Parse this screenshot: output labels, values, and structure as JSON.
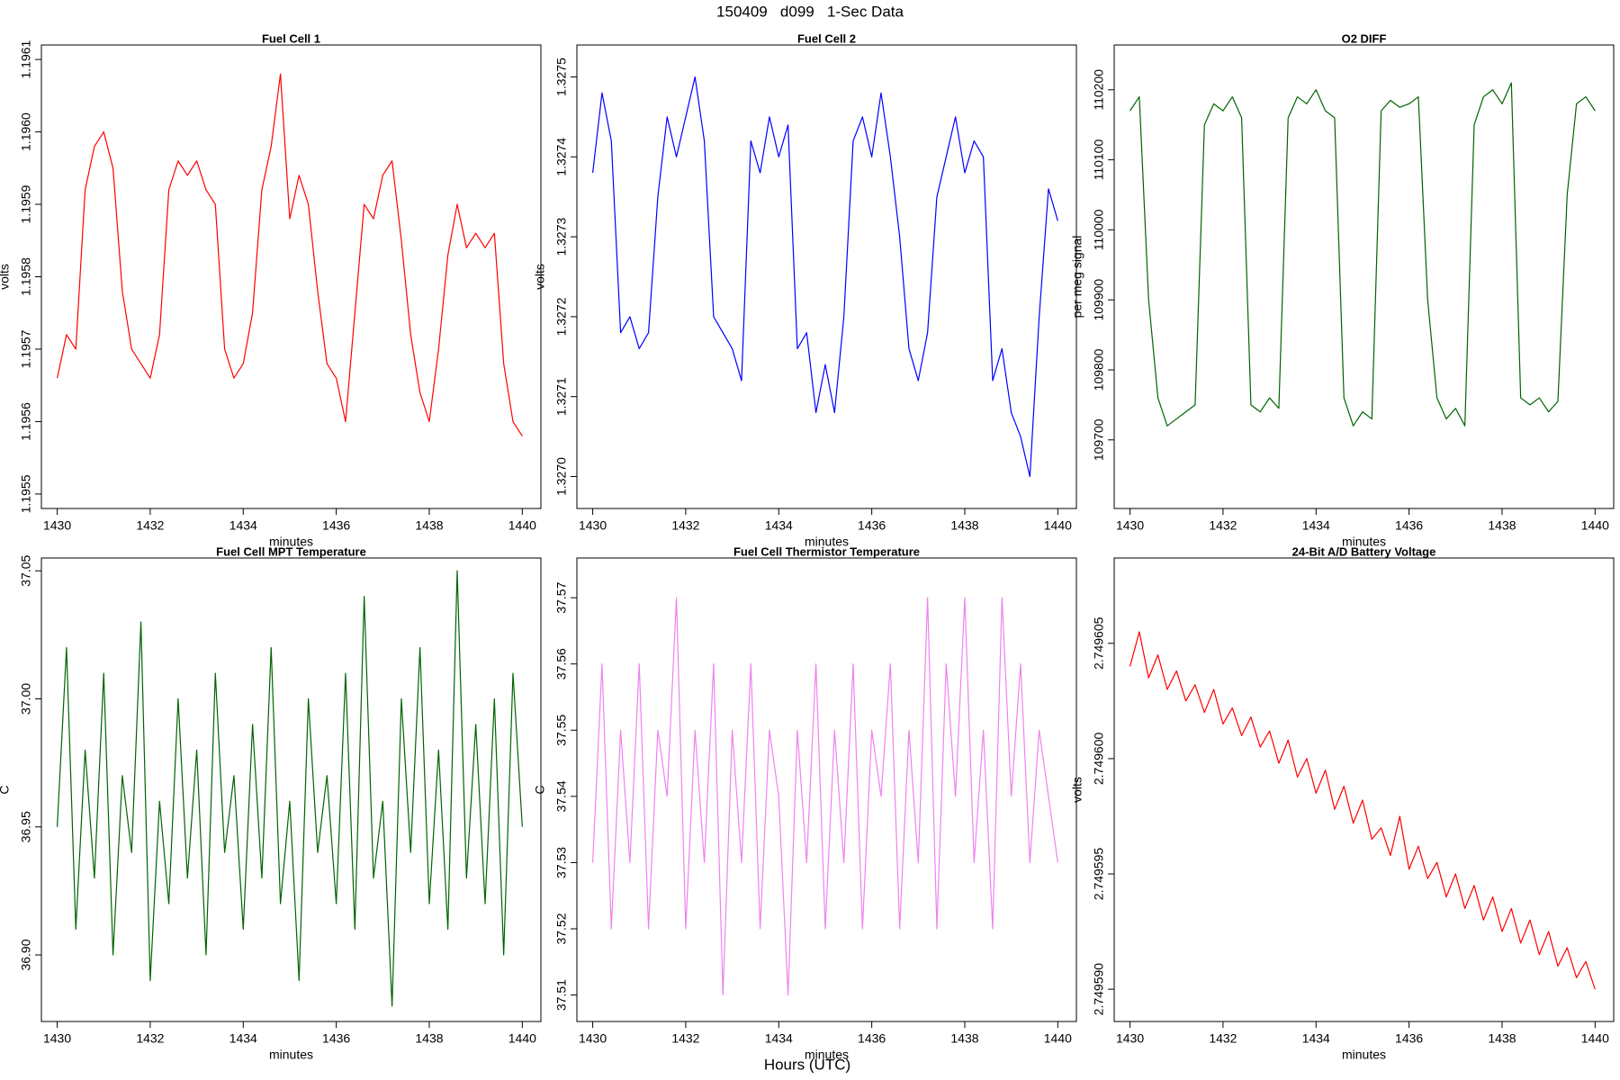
{
  "title": "150409   d099   1-Sec Data",
  "xlabel": "Hours (UTC)",
  "chart_data": [
    {
      "type": "line",
      "title": "Fuel Cell 1",
      "xlabel": "minutes",
      "ylabel": "volts",
      "color": "#ff0000",
      "xlim": [
        1429.66,
        1440.4
      ],
      "xticks": [
        1430,
        1432,
        1434,
        1436,
        1438,
        1440
      ],
      "ylim": [
        1.19548,
        1.19612
      ],
      "yticks": [
        1.1955,
        1.1956,
        1.1957,
        1.1958,
        1.1959,
        {
          "value": 1.196,
          "label": "1.1960"
        },
        1.1961
      ],
      "x": [
        1430,
        1430.2,
        1430.4,
        1430.6,
        1430.8,
        1431,
        1431.2,
        1431.4,
        1431.6,
        1431.8,
        1432,
        1432.2,
        1432.4,
        1432.6,
        1432.8,
        1433,
        1433.2,
        1433.4,
        1433.6,
        1433.8,
        1434,
        1434.2,
        1434.4,
        1434.6,
        1434.8,
        1435,
        1435.2,
        1435.4,
        1435.6,
        1435.8,
        1436,
        1436.2,
        1436.4,
        1436.6,
        1436.8,
        1437,
        1437.2,
        1437.4,
        1437.6,
        1437.8,
        1438,
        1438.2,
        1438.4,
        1438.6,
        1438.8,
        1439,
        1439.2,
        1439.4,
        1439.6,
        1439.8,
        1440
      ],
      "values": [
        1.19566,
        1.19572,
        1.1957,
        1.19592,
        1.19598,
        1.196,
        1.19595,
        1.19578,
        1.1957,
        1.19568,
        1.19566,
        1.19572,
        1.19592,
        1.19596,
        1.19594,
        1.19596,
        1.19592,
        1.1959,
        1.1957,
        1.19566,
        1.19568,
        1.19575,
        1.19592,
        1.19598,
        1.19608,
        1.19588,
        1.19594,
        1.1959,
        1.19578,
        1.19568,
        1.19566,
        1.1956,
        1.19575,
        1.1959,
        1.19588,
        1.19594,
        1.19596,
        1.19585,
        1.19572,
        1.19564,
        1.1956,
        1.1957,
        1.19583,
        1.1959,
        1.19584,
        1.19586,
        1.19584,
        1.19586,
        1.19568,
        1.1956,
        1.19558
      ]
    },
    {
      "type": "line",
      "title": "Fuel Cell 2",
      "xlabel": "minutes",
      "ylabel": "volts",
      "color": "#0000ff",
      "xlim": [
        1429.66,
        1440.4
      ],
      "xticks": [
        1430,
        1432,
        1434,
        1436,
        1438,
        1440
      ],
      "ylim": [
        1.32696,
        1.32754
      ],
      "yticks": [
        {
          "value": 1.327,
          "label": "1.3270"
        },
        1.3271,
        1.3272,
        1.3273,
        1.3274,
        1.3275
      ],
      "x": [
        1430,
        1430.2,
        1430.4,
        1430.6,
        1430.8,
        1431,
        1431.2,
        1431.4,
        1431.6,
        1431.8,
        1432,
        1432.2,
        1432.4,
        1432.6,
        1432.8,
        1433,
        1433.2,
        1433.4,
        1433.6,
        1433.8,
        1434,
        1434.2,
        1434.4,
        1434.6,
        1434.8,
        1435,
        1435.2,
        1435.4,
        1435.6,
        1435.8,
        1436,
        1436.2,
        1436.4,
        1436.6,
        1436.8,
        1437,
        1437.2,
        1437.4,
        1437.6,
        1437.8,
        1438,
        1438.2,
        1438.4,
        1438.6,
        1438.8,
        1439,
        1439.2,
        1439.4,
        1439.6,
        1439.8,
        1440
      ],
      "values": [
        1.32738,
        1.32748,
        1.32742,
        1.32718,
        1.3272,
        1.32716,
        1.32718,
        1.32735,
        1.32745,
        1.3274,
        1.32745,
        1.3275,
        1.32742,
        1.3272,
        1.32718,
        1.32716,
        1.32712,
        1.32742,
        1.32738,
        1.32745,
        1.3274,
        1.32744,
        1.32716,
        1.32718,
        1.32708,
        1.32714,
        1.32708,
        1.3272,
        1.32742,
        1.32745,
        1.3274,
        1.32748,
        1.3274,
        1.3273,
        1.32716,
        1.32712,
        1.32718,
        1.32735,
        1.3274,
        1.32745,
        1.32738,
        1.32742,
        1.3274,
        1.32712,
        1.32716,
        1.32708,
        1.32705,
        1.327,
        1.3272,
        1.32736,
        1.32732
      ]
    },
    {
      "type": "line",
      "title": "O2 DIFF",
      "xlabel": "minutes",
      "ylabel": "per meg signal",
      "color": "#006400",
      "xlim": [
        1429.66,
        1440.4
      ],
      "xticks": [
        1430,
        1432,
        1434,
        1436,
        1438,
        1440
      ],
      "ylim": [
        109602,
        110264
      ],
      "yticks": [
        109700,
        109800,
        109900,
        110000,
        110100,
        110200
      ],
      "x": [
        1430,
        1430.2,
        1430.4,
        1430.6,
        1430.8,
        1431,
        1431.2,
        1431.4,
        1431.6,
        1431.8,
        1432,
        1432.2,
        1432.4,
        1432.6,
        1432.8,
        1433,
        1433.2,
        1433.4,
        1433.6,
        1433.8,
        1434,
        1434.2,
        1434.4,
        1434.6,
        1434.8,
        1435,
        1435.2,
        1435.4,
        1435.6,
        1435.8,
        1436,
        1436.2,
        1436.4,
        1436.6,
        1436.8,
        1437,
        1437.2,
        1437.4,
        1437.6,
        1437.8,
        1438,
        1438.2,
        1438.4,
        1438.6,
        1438.8,
        1439,
        1439.2,
        1439.4,
        1439.6,
        1439.8,
        1440
      ],
      "values": [
        110170,
        110190,
        109900,
        109760,
        109720,
        109730,
        109740,
        109750,
        110150,
        110180,
        110170,
        110190,
        110160,
        109750,
        109740,
        109760,
        109745,
        110160,
        110190,
        110180,
        110200,
        110170,
        110160,
        109760,
        109720,
        109740,
        109730,
        110170,
        110185,
        110175,
        110180,
        110190,
        109900,
        109760,
        109730,
        109745,
        109720,
        110150,
        110190,
        110200,
        110180,
        110210,
        109760,
        109750,
        109760,
        109740,
        109755,
        110050,
        110180,
        110190,
        110170
      ]
    },
    {
      "type": "line",
      "title": "Fuel Cell MPT Temperature",
      "xlabel": "minutes",
      "ylabel": "C",
      "color": "#006400",
      "xlim": [
        1429.66,
        1440.4
      ],
      "xticks": [
        1430,
        1432,
        1434,
        1436,
        1438,
        1440
      ],
      "ylim": [
        36.874,
        37.055
      ],
      "yticks": [
        {
          "value": 36.9,
          "label": "36.90"
        },
        36.95,
        {
          "value": 37,
          "label": "37.00"
        },
        37.05
      ],
      "x": [
        1430,
        1430.2,
        1430.4,
        1430.6,
        1430.8,
        1431,
        1431.2,
        1431.4,
        1431.6,
        1431.8,
        1432,
        1432.2,
        1432.4,
        1432.6,
        1432.8,
        1433,
        1433.2,
        1433.4,
        1433.6,
        1433.8,
        1434,
        1434.2,
        1434.4,
        1434.6,
        1434.8,
        1435,
        1435.2,
        1435.4,
        1435.6,
        1435.8,
        1436,
        1436.2,
        1436.4,
        1436.6,
        1436.8,
        1437,
        1437.2,
        1437.4,
        1437.6,
        1437.8,
        1438,
        1438.2,
        1438.4,
        1438.6,
        1438.8,
        1439,
        1439.2,
        1439.4,
        1439.6,
        1439.8,
        1440
      ],
      "values": [
        36.95,
        37.02,
        36.91,
        36.98,
        36.93,
        37.01,
        36.9,
        36.97,
        36.94,
        37.03,
        36.89,
        36.96,
        36.92,
        37,
        36.93,
        36.98,
        36.9,
        37.01,
        36.94,
        36.97,
        36.91,
        36.99,
        36.93,
        37.02,
        36.92,
        36.96,
        36.89,
        37,
        36.94,
        36.97,
        36.92,
        37.01,
        36.91,
        37.04,
        36.93,
        36.96,
        36.88,
        37,
        36.94,
        37.02,
        36.92,
        36.98,
        36.91,
        37.05,
        36.93,
        36.99,
        36.92,
        37,
        36.9,
        37.01,
        36.95
      ]
    },
    {
      "type": "line",
      "title": "Fuel Cell Thermistor Temperature",
      "xlabel": "minutes",
      "ylabel": "C",
      "color": "#ee82ee",
      "xlim": [
        1429.66,
        1440.4
      ],
      "xticks": [
        1430,
        1432,
        1434,
        1436,
        1438,
        1440
      ],
      "ylim": [
        37.506,
        37.576
      ],
      "yticks": [
        37.51,
        37.52,
        37.53,
        37.54,
        37.55,
        37.56,
        37.57
      ],
      "x": [
        1430,
        1430.2,
        1430.4,
        1430.6,
        1430.8,
        1431,
        1431.2,
        1431.4,
        1431.6,
        1431.8,
        1432,
        1432.2,
        1432.4,
        1432.6,
        1432.8,
        1433,
        1433.2,
        1433.4,
        1433.6,
        1433.8,
        1434,
        1434.2,
        1434.4,
        1434.6,
        1434.8,
        1435,
        1435.2,
        1435.4,
        1435.6,
        1435.8,
        1436,
        1436.2,
        1436.4,
        1436.6,
        1436.8,
        1437,
        1437.2,
        1437.4,
        1437.6,
        1437.8,
        1438,
        1438.2,
        1438.4,
        1438.6,
        1438.8,
        1439,
        1439.2,
        1439.4,
        1439.6,
        1439.8,
        1440
      ],
      "values": [
        37.53,
        37.56,
        37.52,
        37.55,
        37.53,
        37.56,
        37.52,
        37.55,
        37.54,
        37.57,
        37.52,
        37.55,
        37.53,
        37.56,
        37.51,
        37.55,
        37.53,
        37.56,
        37.52,
        37.55,
        37.54,
        37.51,
        37.55,
        37.53,
        37.56,
        37.52,
        37.55,
        37.53,
        37.56,
        37.52,
        37.55,
        37.54,
        37.56,
        37.52,
        37.55,
        37.53,
        37.57,
        37.52,
        37.56,
        37.54,
        37.57,
        37.53,
        37.55,
        37.52,
        37.57,
        37.54,
        37.56,
        37.53,
        37.55,
        37.54,
        37.53
      ]
    },
    {
      "type": "line",
      "title": "24-Bit A/D Battery Voltage",
      "xlabel": "minutes",
      "ylabel": "volts",
      "color": "#ff0000",
      "xlim": [
        1429.66,
        1440.4
      ],
      "xticks": [
        1430,
        1432,
        1434,
        1436,
        1438,
        1440
      ],
      "ylim": [
        2.7495886,
        2.7496087
      ],
      "yticks": [
        {
          "value": 2.74959,
          "label": "2.749590"
        },
        2.749595,
        {
          "value": 2.7496,
          "label": "2.749600"
        },
        2.749605
      ],
      "x": [
        1430,
        1430.2,
        1430.4,
        1430.6,
        1430.8,
        1431,
        1431.2,
        1431.4,
        1431.6,
        1431.8,
        1432,
        1432.2,
        1432.4,
        1432.6,
        1432.8,
        1433,
        1433.2,
        1433.4,
        1433.6,
        1433.8,
        1434,
        1434.2,
        1434.4,
        1434.6,
        1434.8,
        1435,
        1435.2,
        1435.4,
        1435.6,
        1435.8,
        1436,
        1436.2,
        1436.4,
        1436.6,
        1436.8,
        1437,
        1437.2,
        1437.4,
        1437.6,
        1437.8,
        1438,
        1438.2,
        1438.4,
        1438.6,
        1438.8,
        1439,
        1439.2,
        1439.4,
        1439.6,
        1439.8,
        1440
      ],
      "values": [
        2.749604,
        2.7496055,
        2.7496035,
        2.7496045,
        2.749603,
        2.7496038,
        2.7496025,
        2.7496032,
        2.749602,
        2.749603,
        2.7496015,
        2.7496022,
        2.749601,
        2.7496018,
        2.7496005,
        2.7496012,
        2.7495998,
        2.7496008,
        2.7495992,
        2.7496,
        2.7495985,
        2.7495995,
        2.7495978,
        2.7495988,
        2.7495972,
        2.7495982,
        2.7495965,
        2.749597,
        2.7495958,
        2.7495975,
        2.7495952,
        2.7495962,
        2.7495948,
        2.7495955,
        2.749594,
        2.749595,
        2.7495935,
        2.7495945,
        2.749593,
        2.749594,
        2.7495925,
        2.7495935,
        2.749592,
        2.749593,
        2.7495915,
        2.7495925,
        2.749591,
        2.7495918,
        2.7495905,
        2.7495912,
        2.74959
      ]
    }
  ]
}
